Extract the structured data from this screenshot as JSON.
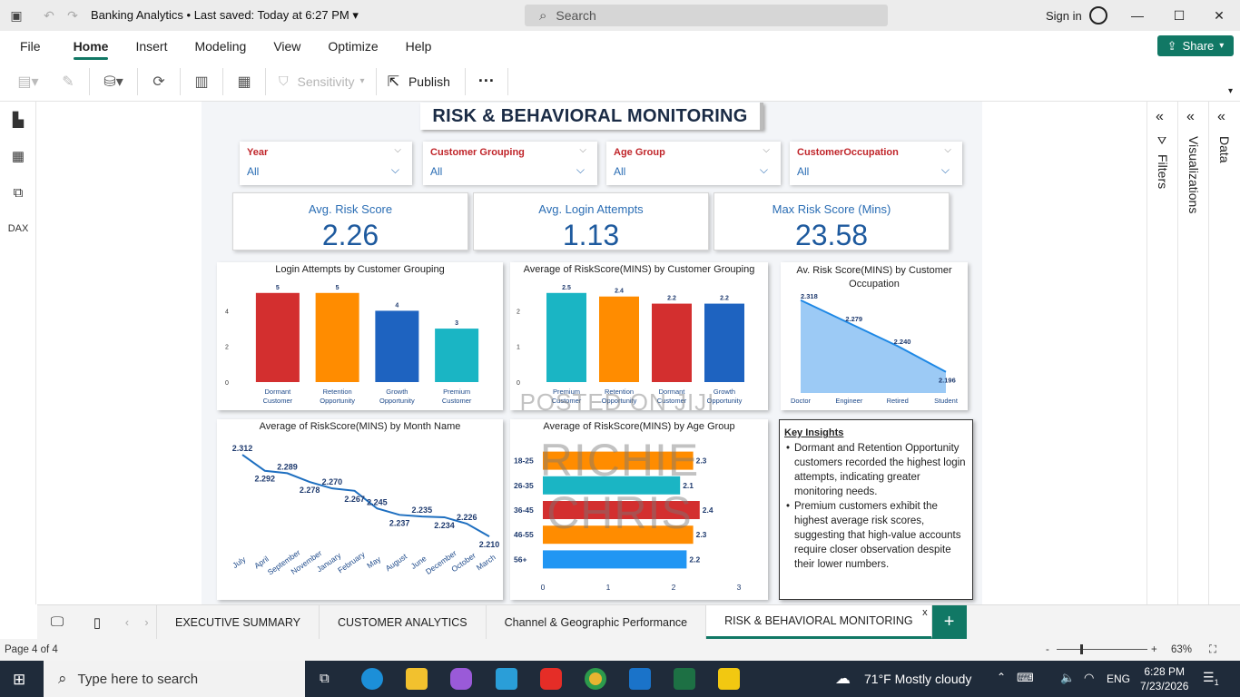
{
  "app": {
    "title": "Banking Analytics",
    "saved": "Last saved: Today at 6:27 PM",
    "search_placeholder": "Search",
    "sign_in": "Sign in"
  },
  "menu": [
    "File",
    "Home",
    "Insert",
    "Modeling",
    "View",
    "Optimize",
    "Help"
  ],
  "menu_active": "Home",
  "share_label": "Share",
  "ribbon": {
    "sensitivity": "Sensitivity",
    "publish": "Publish",
    "more": "···"
  },
  "report": {
    "title": "RISK & BEHAVIORAL MONITORING",
    "slicers": [
      {
        "label": "Year",
        "value": "All"
      },
      {
        "label": "Customer Grouping",
        "value": "All"
      },
      {
        "label": "Age Group",
        "value": "All"
      },
      {
        "label": "CustomerOccupation",
        "value": "All"
      }
    ],
    "kpis": [
      {
        "label": "Avg. Risk Score",
        "value": "2.26"
      },
      {
        "label": "Avg. Login Attempts",
        "value": "1.13"
      },
      {
        "label": "Max Risk Score (Mins)",
        "value": "23.58"
      }
    ],
    "insights": {
      "title": "Key Insights",
      "bullets": [
        "Dormant and Retention Opportunity customers recorded the highest login attempts, indicating greater monitoring needs.",
        "Premium customers exhibit the highest average risk scores, suggesting that high-value accounts require closer observation despite their lower numbers."
      ]
    },
    "watermark": {
      "line1": "POSTED ON JIJI",
      "line2": "RICHIE CHRIS"
    }
  },
  "chart_data": [
    {
      "type": "bar",
      "title": "Login Attempts by Customer Grouping",
      "categories": [
        "Dormant Customer",
        "Retention Opportunity",
        "Growth Opportunity",
        "Premium Customer"
      ],
      "values": [
        5,
        5,
        4,
        3
      ],
      "colors": [
        "#d32f2f",
        "#ff8c00",
        "#1e63c0",
        "#1ab5c4"
      ],
      "yticks": [
        0,
        2,
        4
      ],
      "ylim": [
        0,
        5.6
      ]
    },
    {
      "type": "bar",
      "title": "Average of RiskScore(MINS) by Customer Grouping",
      "categories": [
        "Premium Customer",
        "Retention Opportunity",
        "Dormant Customer",
        "Growth Opportunity"
      ],
      "values": [
        2.5,
        2.4,
        2.2,
        2.2
      ],
      "colors": [
        "#1ab5c4",
        "#ff8c00",
        "#d32f2f",
        "#1e63c0"
      ],
      "yticks": [
        0,
        1,
        2
      ],
      "ylim": [
        0,
        2.8
      ]
    },
    {
      "type": "area",
      "title": "Av. Risk Score(MINS) by Customer Occupation",
      "categories": [
        "Doctor",
        "Engineer",
        "Retired",
        "Student"
      ],
      "values": [
        2.318,
        2.279,
        2.24,
        2.196
      ],
      "labels": [
        "2.318",
        "2.279",
        "2.240",
        "2.196"
      ],
      "color": "#1e88e5",
      "ylim": [
        2.16,
        2.33
      ]
    },
    {
      "type": "line",
      "title": "Average of RiskScore(MINS) by Month Name",
      "categories": [
        "July",
        "April",
        "September",
        "November",
        "January",
        "February",
        "May",
        "August",
        "June",
        "December",
        "October",
        "March"
      ],
      "values": [
        2.312,
        2.292,
        2.289,
        2.278,
        2.27,
        2.267,
        2.245,
        2.237,
        2.235,
        2.234,
        2.226,
        2.21
      ],
      "labels": [
        "2.312",
        "2.292",
        "2.289",
        "2.278",
        "2.270",
        "2.267",
        "2.245",
        "2.237",
        "2.235",
        "2.234",
        "2.226",
        "2.210"
      ],
      "color": "#1e6fc0",
      "ylim": [
        2.2,
        2.32
      ]
    },
    {
      "type": "bar",
      "orientation": "horizontal",
      "title": "Average of RiskScore(MINS) by Age Group",
      "categories": [
        "18-25",
        "26-35",
        "36-45",
        "46-55",
        "56+"
      ],
      "values": [
        2.3,
        2.1,
        2.4,
        2.3,
        2.2
      ],
      "colors": [
        "#ff8c00",
        "#1ab5c4",
        "#d32f2f",
        "#ff8c00",
        "#2196f3"
      ],
      "xticks": [
        0,
        1,
        2,
        3
      ],
      "xlim": [
        0,
        3
      ]
    }
  ],
  "tabs": [
    "EXECUTIVE SUMMARY",
    "CUSTOMER ANALYTICS",
    "Channel & Geographic Performance",
    "RISK & BEHAVIORAL MONITORING"
  ],
  "tab_active": "RISK & BEHAVIORAL MONITORING",
  "tab_close": "x",
  "tab_add": "+",
  "panes": {
    "filters": "Filters",
    "visualizations": "Visualizations",
    "data": "Data"
  },
  "status": {
    "page": "Page 4 of 4",
    "zoom": "63%"
  },
  "taskbar": {
    "search": "Type here to search",
    "weather": "71°F  Mostly cloudy",
    "lang": "ENG",
    "time": "6:28 PM",
    "date": "7/23/2026",
    "notif": "1"
  }
}
